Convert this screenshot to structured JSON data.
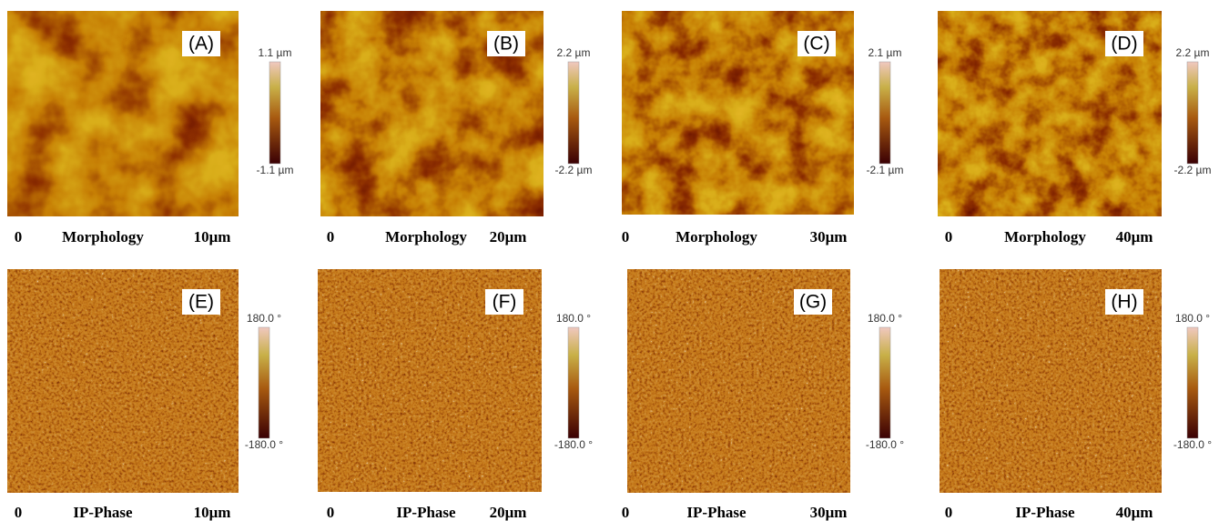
{
  "panels": [
    {
      "label": "(A)",
      "colorbar": {
        "max": "1.1 µm",
        "min": "-1.1 µm"
      },
      "caption": {
        "origin": "0",
        "title": "Morphology",
        "scale": "10μm"
      }
    },
    {
      "label": "(B)",
      "colorbar": {
        "max": "2.2 µm",
        "min": "-2.2 µm"
      },
      "caption": {
        "origin": "0",
        "title": "Morphology",
        "scale": "20μm"
      }
    },
    {
      "label": "(C)",
      "colorbar": {
        "max": "2.1 µm",
        "min": "-2.1 µm"
      },
      "caption": {
        "origin": "0",
        "title": "Morphology",
        "scale": "30μm"
      }
    },
    {
      "label": "(D)",
      "colorbar": {
        "max": "2.2 µm",
        "min": "-2.2 µm"
      },
      "caption": {
        "origin": "0",
        "title": "Morphology",
        "scale": "40μm"
      }
    },
    {
      "label": "(E)",
      "colorbar": {
        "max": "180.0 °",
        "min": "-180.0 °"
      },
      "caption": {
        "origin": "0",
        "title": "IP-Phase",
        "scale": "10μm"
      }
    },
    {
      "label": "(F)",
      "colorbar": {
        "max": "180.0 °",
        "min": "-180.0 °"
      },
      "caption": {
        "origin": "0",
        "title": "IP-Phase",
        "scale": "20μm"
      }
    },
    {
      "label": "(G)",
      "colorbar": {
        "max": "180.0 °",
        "min": "-180.0 °"
      },
      "caption": {
        "origin": "0",
        "title": "IP-Phase",
        "scale": "30μm"
      }
    },
    {
      "label": "(H)",
      "colorbar": {
        "max": "180.0 °",
        "min": "-180.0 °"
      },
      "caption": {
        "origin": "0",
        "title": "IP-Phase",
        "scale": "40μm"
      }
    }
  ]
}
